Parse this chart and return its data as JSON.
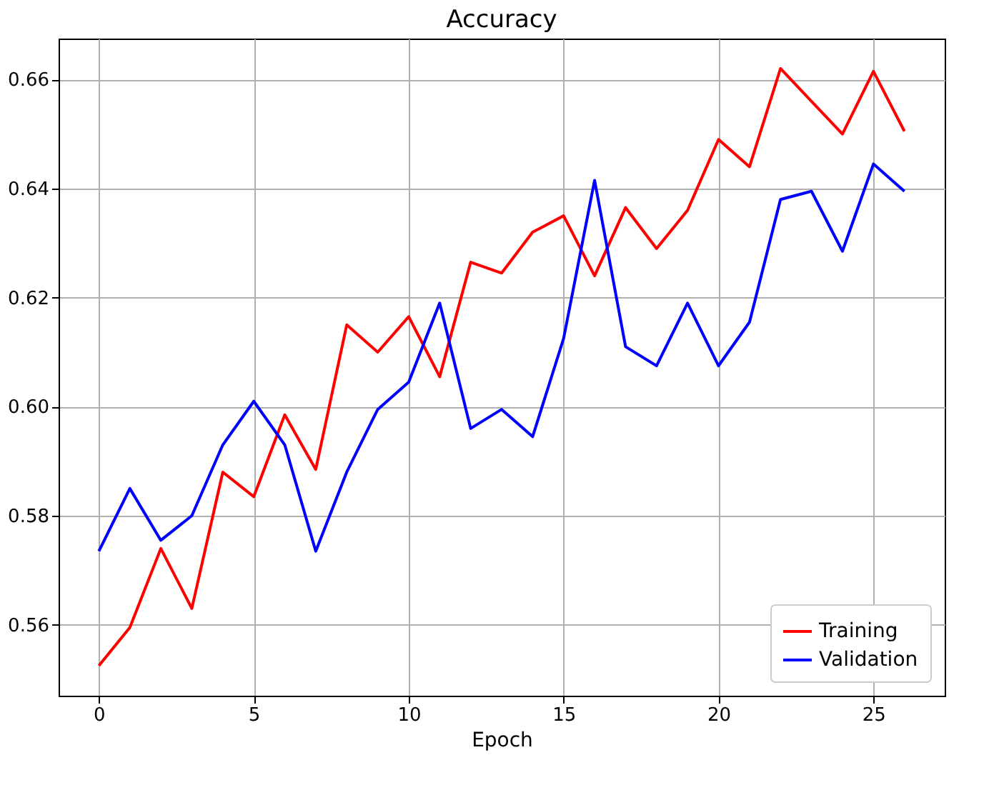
{
  "chart_data": {
    "type": "line",
    "title": "Accuracy",
    "xlabel": "Epoch",
    "x": [
      0,
      1,
      2,
      3,
      4,
      5,
      6,
      7,
      8,
      9,
      10,
      11,
      12,
      13,
      14,
      15,
      16,
      17,
      18,
      19,
      20,
      21,
      22,
      23,
      24,
      25,
      26
    ],
    "series": [
      {
        "name": "Training",
        "color": "#ff0000",
        "values": [
          0.5525,
          0.5595,
          0.574,
          0.563,
          0.588,
          0.5835,
          0.5985,
          0.5885,
          0.615,
          0.61,
          0.6165,
          0.6055,
          0.6265,
          0.6245,
          0.632,
          0.635,
          0.624,
          0.6365,
          0.629,
          0.636,
          0.649,
          0.644,
          0.662,
          0.656,
          0.65,
          0.6615,
          0.6505
        ]
      },
      {
        "name": "Validation",
        "color": "#0000ff",
        "values": [
          0.5735,
          0.585,
          0.5755,
          0.58,
          0.593,
          0.601,
          0.593,
          0.5735,
          0.588,
          0.5995,
          0.6045,
          0.619,
          0.596,
          0.5995,
          0.5945,
          0.6125,
          0.6415,
          0.611,
          0.6075,
          0.619,
          0.6075,
          0.6155,
          0.638,
          0.6395,
          0.6285,
          0.6445,
          0.6395
        ]
      }
    ],
    "xlim": [
      -1.3,
      27.3
    ],
    "xticks": [
      0,
      5,
      10,
      15,
      20,
      25
    ],
    "ylim": [
      0.547,
      0.6675
    ],
    "yticks": [
      0.56,
      0.58,
      {
        "value": 0.6,
        "label": "0.60"
      },
      0.62,
      0.64,
      0.66
    ],
    "grid": true,
    "legend": "bottom right",
    "line_style": "solid",
    "marker": "none"
  }
}
